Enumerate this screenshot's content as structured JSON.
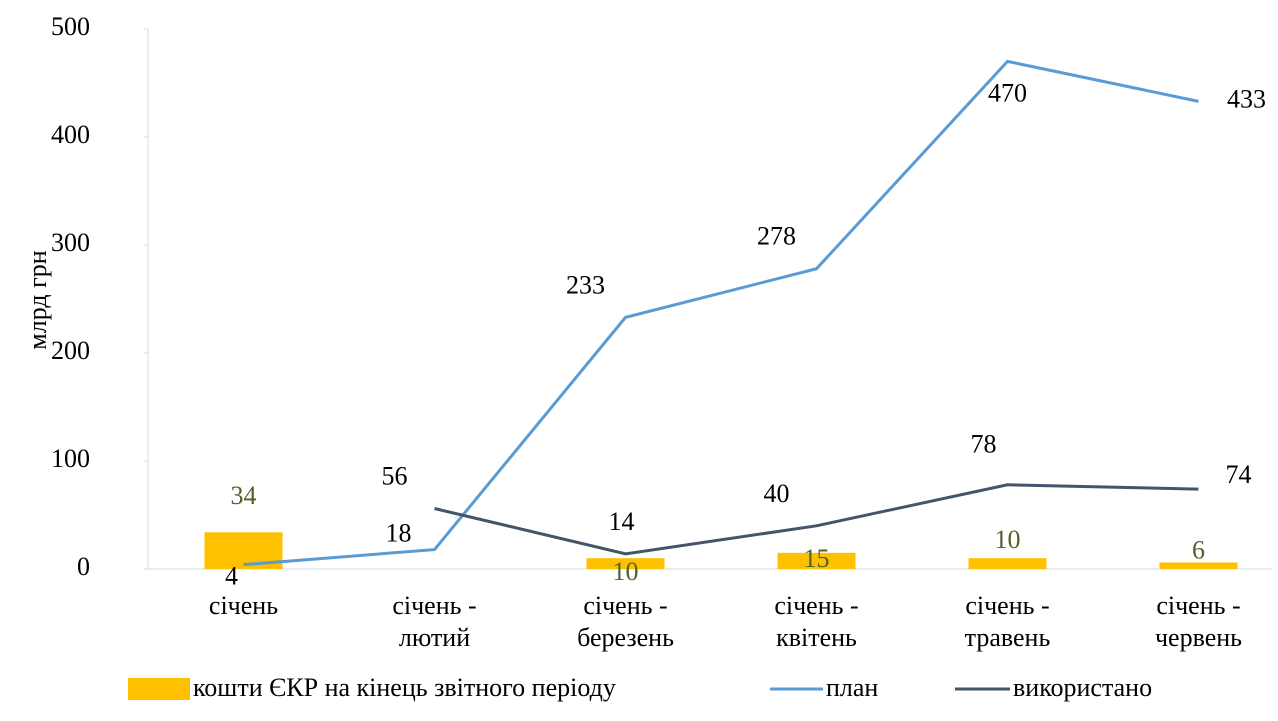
{
  "chart_data": {
    "type": "bar-line",
    "y_label": "млрд грн",
    "categories": [
      "січень",
      "січень - лютий",
      "січень - березень",
      "січень - квітень",
      "січень - травень",
      "січень - червень"
    ],
    "series": [
      {
        "name": "кошти ЄКР на кінець звітного періоду",
        "type": "bar",
        "color": "#ffc000",
        "label_color": "#4f6228",
        "values": [
          34,
          null,
          10,
          15,
          10,
          6
        ]
      },
      {
        "name": "план",
        "type": "line",
        "color": "#5b9bd5",
        "values": [
          4,
          18,
          233,
          278,
          470,
          433
        ]
      },
      {
        "name": "використано",
        "type": "line",
        "color": "#44546a",
        "values": [
          null,
          56,
          14,
          40,
          78,
          74
        ]
      }
    ],
    "ylim": [
      0,
      500
    ],
    "yticks": [
      0,
      100,
      200,
      300,
      400,
      500
    ],
    "grid": false
  }
}
